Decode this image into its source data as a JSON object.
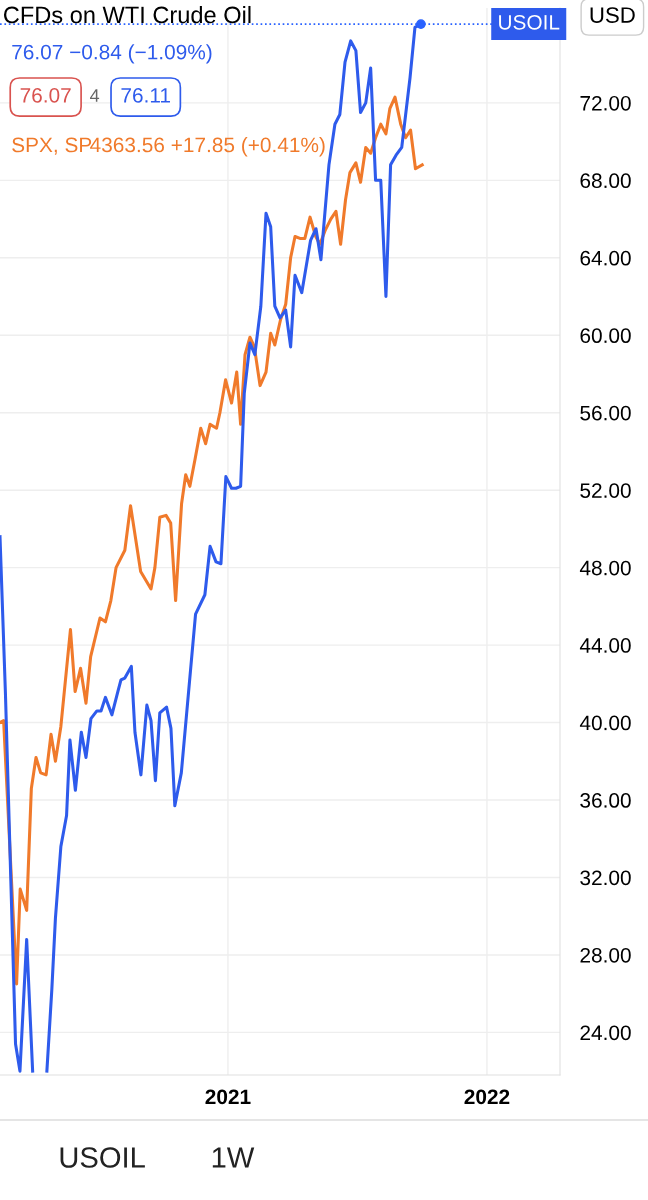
{
  "chart_data": {
    "type": "line",
    "title": "CFDs on WTI Crude Oil",
    "xlim": [
      2020.12,
      2022.282
    ],
    "xticks": [
      {
        "value": 2021,
        "label": "2021"
      },
      {
        "value": 2022,
        "label": "2022"
      }
    ],
    "ylim": [
      21.8,
      76.9
    ],
    "yticks": [
      {
        "value": 24,
        "label": "24.00"
      },
      {
        "value": 28,
        "label": "28.00"
      },
      {
        "value": 32,
        "label": "32.00"
      },
      {
        "value": 36,
        "label": "36.00"
      },
      {
        "value": 40,
        "label": "40.00"
      },
      {
        "value": 44,
        "label": "44.00"
      },
      {
        "value": 48,
        "label": "48.00"
      },
      {
        "value": 52,
        "label": "52.00"
      },
      {
        "value": 56,
        "label": "56.00"
      },
      {
        "value": 60,
        "label": "60.00"
      },
      {
        "value": 64,
        "label": "64.00"
      },
      {
        "value": 68,
        "label": "68.00"
      },
      {
        "value": 72,
        "label": "72.00"
      }
    ],
    "grid": true,
    "marker": "none",
    "line_style": "solid",
    "series": [
      {
        "name": "SPX, SP",
        "color": "#f07a2b",
        "x": [
          2020.12,
          2020.134,
          2020.184,
          2020.198,
          2020.223,
          2020.241,
          2020.259,
          2020.277,
          2020.298,
          2020.317,
          2020.334,
          2020.355,
          2020.392,
          2020.41,
          2020.431,
          2020.452,
          2020.47,
          2020.506,
          2020.527,
          2020.548,
          2020.568,
          2020.602,
          2020.624,
          2020.663,
          2020.703,
          2020.718,
          2020.737,
          2020.761,
          2020.779,
          2020.798,
          2020.821,
          2020.837,
          2020.853,
          2020.873,
          2020.895,
          2020.914,
          2020.931,
          2020.956,
          2020.969,
          2020.991,
          2021.014,
          2021.034,
          2021.049,
          2021.066,
          2021.085,
          2021.102,
          2021.124,
          2021.147,
          2021.165,
          2021.181,
          2021.203,
          2021.223,
          2021.242,
          2021.259,
          2021.278,
          2021.297,
          2021.317,
          2021.339,
          2021.355,
          2021.375,
          2021.397,
          2021.417,
          2021.435,
          2021.454,
          2021.471,
          2021.494,
          2021.512,
          2021.532,
          2021.551,
          2021.57,
          2021.59,
          2021.61,
          2021.625,
          2021.645,
          2021.667,
          2021.686,
          2021.705,
          2021.724,
          2021.75
        ],
        "values": [
          40.0,
          40.1,
          26.5,
          31.4,
          30.3,
          36.6,
          38.2,
          37.4,
          37.3,
          39.4,
          38.0,
          39.8,
          44.8,
          41.6,
          42.8,
          41.0,
          43.4,
          45.4,
          45.2,
          46.3,
          48.0,
          48.9,
          51.2,
          47.8,
          46.9,
          48.0,
          50.6,
          50.7,
          50.3,
          46.3,
          51.3,
          52.8,
          52.2,
          53.6,
          55.2,
          54.4,
          55.4,
          55.2,
          56.0,
          57.7,
          56.5,
          58.1,
          55.4,
          59.0,
          59.9,
          59.4,
          57.4,
          58.1,
          60.1,
          59.5,
          60.8,
          61.6,
          64.0,
          65.1,
          65.0,
          65.0,
          66.1,
          65.1,
          64.7,
          65.4,
          66.0,
          66.4,
          64.7,
          67.0,
          68.4,
          68.9,
          67.9,
          69.7,
          69.4,
          70.2,
          70.9,
          70.4,
          71.7,
          72.3,
          70.9,
          70.2,
          70.6,
          68.6,
          68.8
        ]
      },
      {
        "name": "USOIL",
        "color": "#2e5bec",
        "x": [
          2020.12,
          2020.141,
          2020.18,
          2020.197,
          2020.223,
          2020.246,
          2020.274,
          2020.301,
          2020.32,
          2020.334,
          2020.355,
          2020.377,
          2020.39,
          2020.411,
          2020.434,
          2020.452,
          2020.471,
          2020.494,
          2020.51,
          2020.527,
          2020.552,
          2020.575,
          2020.587,
          2020.602,
          2020.627,
          2020.641,
          2020.664,
          2020.687,
          2020.703,
          2020.72,
          2020.737,
          2020.763,
          2020.78,
          2020.795,
          2020.82,
          2020.875,
          2020.911,
          2020.931,
          2020.954,
          2020.973,
          2020.992,
          2021.014,
          2021.031,
          2021.049,
          2021.063,
          2021.085,
          2021.104,
          2021.127,
          2021.147,
          2021.165,
          2021.181,
          2021.201,
          2021.223,
          2021.242,
          2021.259,
          2021.285,
          2021.319,
          2021.34,
          2021.359,
          2021.39,
          2021.413,
          2021.432,
          2021.452,
          2021.474,
          2021.494,
          2021.512,
          2021.532,
          2021.551,
          2021.57,
          2021.59,
          2021.61,
          2021.628,
          2021.649,
          2021.671,
          2021.703,
          2021.722,
          2021.745
        ],
        "values": [
          49.6,
          41.5,
          23.4,
          22.0,
          28.8,
          22.0,
          null,
          22.0,
          26.2,
          29.9,
          33.6,
          35.2,
          39.1,
          36.5,
          39.5,
          38.2,
          40.2,
          40.6,
          40.6,
          41.3,
          40.4,
          41.6,
          42.2,
          42.3,
          42.9,
          39.5,
          37.3,
          40.9,
          40.1,
          37.0,
          40.5,
          40.8,
          39.7,
          35.7,
          37.4,
          45.6,
          46.6,
          49.1,
          48.3,
          48.2,
          52.7,
          52.1,
          52.1,
          52.2,
          57.0,
          59.6,
          59.0,
          61.5,
          66.3,
          65.6,
          61.5,
          60.9,
          61.3,
          59.4,
          63.1,
          62.2,
          64.9,
          65.5,
          63.9,
          68.8,
          70.9,
          71.4,
          74.1,
          75.2,
          74.7,
          71.5,
          72.0,
          73.8,
          68.0,
          68.0,
          62.0,
          68.8,
          69.3,
          69.7,
          73.3,
          75.9,
          76.07
        ]
      }
    ],
    "ref_lines": [
      {
        "axis": "y",
        "value": 76.07,
        "color": "#2962ff",
        "line_style": "dotted"
      }
    ],
    "annotations": [
      "76.07 −0.84 (−1.09%)",
      "76.07",
      "4",
      "76.11",
      "4363.56 +17.85 (+0.41%)",
      "USD",
      "USOIL",
      "1W"
    ]
  }
}
